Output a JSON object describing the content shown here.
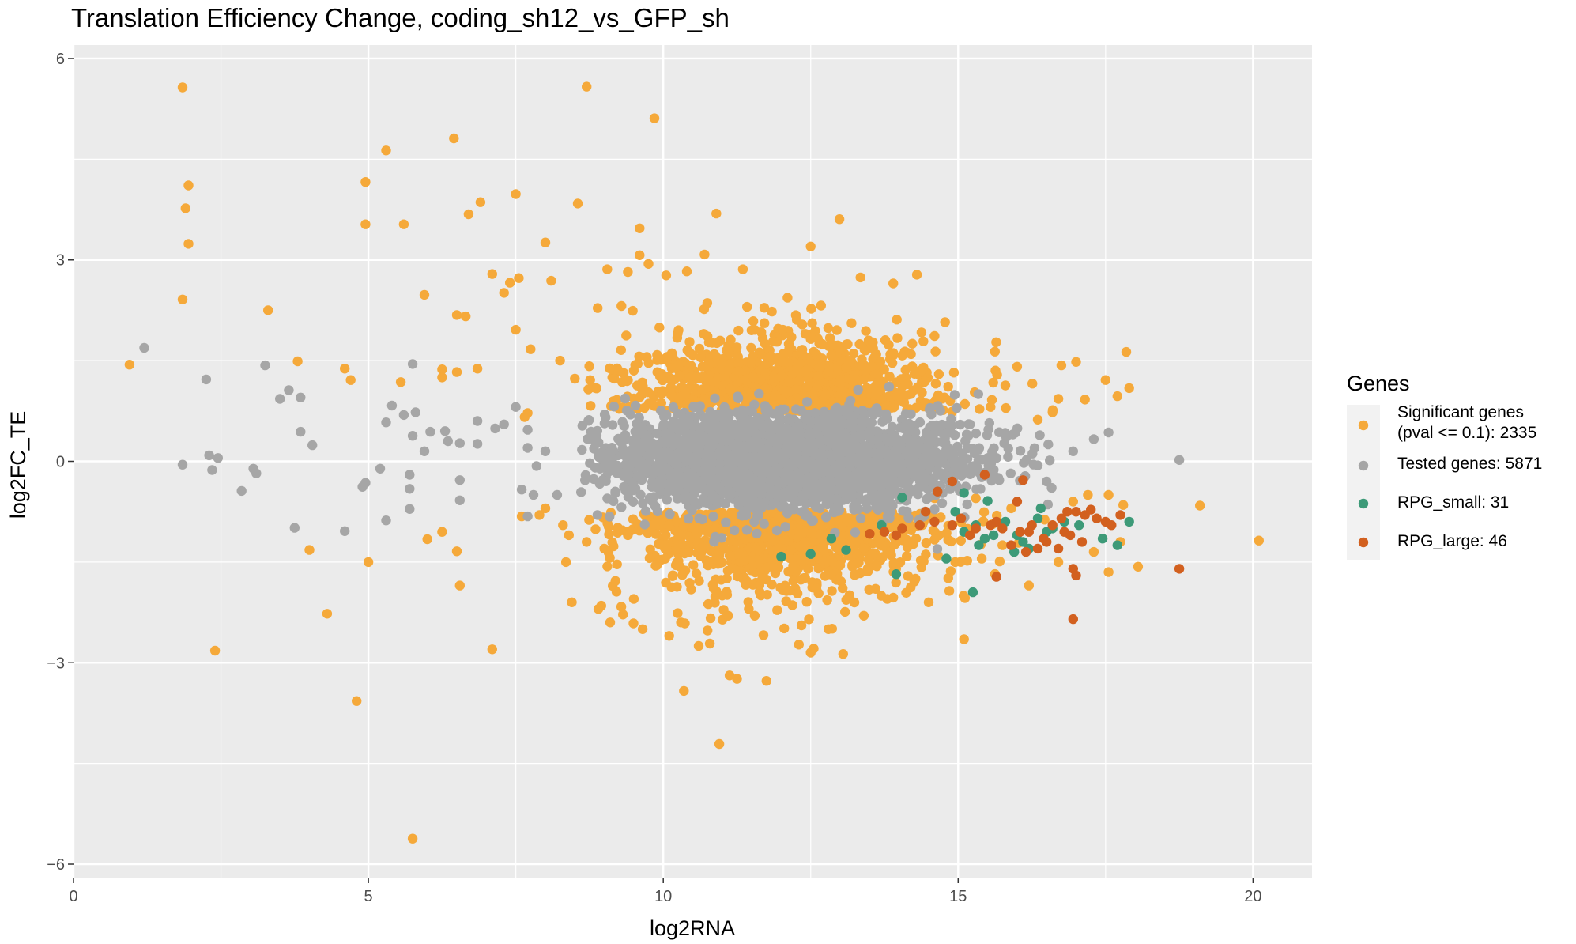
{
  "chart_data": {
    "type": "scatter",
    "title": "Translation Efficiency Change, coding_sh12_vs_GFP_sh",
    "xlabel": "log2RNA",
    "ylabel": "log2FC_TE",
    "xlim": [
      0,
      21
    ],
    "ylim": [
      -6.2,
      6.2
    ],
    "x_ticks": [
      0,
      5,
      10,
      15,
      20
    ],
    "y_ticks": [
      -6,
      -3,
      0,
      3,
      6
    ],
    "y_tick_labels": [
      "−6",
      "−3",
      "0",
      "3",
      "6"
    ],
    "grid": true,
    "panel_background": "#ebebeb",
    "legend": {
      "title": "Genes",
      "position": "right",
      "entries": [
        {
          "key": "significant",
          "label_lines": [
            "Significant genes",
            "(pval <= 0.1): 2335"
          ],
          "color": "#f5a93a"
        },
        {
          "key": "tested",
          "label_lines": [
            "Tested genes: 5871"
          ],
          "color": "#a6a6a6"
        },
        {
          "key": "rpg_small",
          "label_lines": [
            "RPG_small: 31"
          ],
          "color": "#3d9a78"
        },
        {
          "key": "rpg_large",
          "label_lines": [
            "RPG_large: 46"
          ],
          "color": "#d2601f"
        }
      ]
    },
    "series": [
      {
        "key": "significant",
        "color": "#f5a93a",
        "points": [
          [
            1.85,
            5.57
          ],
          [
            8.7,
            5.58
          ],
          [
            9.85,
            5.11
          ],
          [
            6.45,
            4.81
          ],
          [
            5.3,
            4.63
          ],
          [
            1.95,
            4.11
          ],
          [
            4.95,
            4.16
          ],
          [
            1.9,
            3.77
          ],
          [
            7.5,
            3.98
          ],
          [
            8.55,
            3.84
          ],
          [
            6.9,
            3.86
          ],
          [
            4.95,
            3.53
          ],
          [
            5.6,
            3.53
          ],
          [
            6.7,
            3.68
          ],
          [
            1.95,
            3.24
          ],
          [
            8.0,
            3.26
          ],
          [
            10.9,
            3.69
          ],
          [
            9.6,
            3.47
          ],
          [
            3.3,
            2.25
          ],
          [
            1.85,
            2.41
          ],
          [
            6.5,
            2.18
          ],
          [
            6.65,
            2.16
          ],
          [
            5.95,
            2.48
          ],
          [
            7.1,
            2.79
          ],
          [
            7.55,
            2.73
          ],
          [
            7.4,
            2.66
          ],
          [
            7.3,
            2.51
          ],
          [
            8.1,
            2.69
          ],
          [
            12.5,
            3.2
          ],
          [
            13.9,
            2.65
          ],
          [
            14.3,
            2.78
          ],
          [
            0.95,
            1.44
          ],
          [
            3.8,
            1.49
          ],
          [
            4.6,
            1.38
          ],
          [
            4.7,
            1.21
          ],
          [
            5.55,
            1.18
          ],
          [
            6.25,
            1.37
          ],
          [
            6.5,
            1.33
          ],
          [
            6.25,
            1.25
          ],
          [
            6.85,
            1.38
          ],
          [
            7.5,
            1.96
          ],
          [
            7.75,
            1.67
          ],
          [
            8.25,
            1.5
          ],
          [
            8.5,
            1.23
          ],
          [
            9.05,
            2.86
          ],
          [
            9.4,
            2.82
          ],
          [
            9.6,
            3.07
          ],
          [
            9.75,
            2.94
          ],
          [
            10.05,
            2.77
          ],
          [
            10.4,
            2.83
          ],
          [
            10.7,
            3.08
          ],
          [
            11.35,
            2.86
          ],
          [
            17.85,
            1.63
          ],
          [
            17.5,
            1.21
          ],
          [
            17.9,
            1.09
          ],
          [
            17.7,
            0.97
          ],
          [
            17.0,
            1.48
          ],
          [
            16.75,
            1.43
          ],
          [
            16.7,
            0.93
          ],
          [
            17.15,
            0.92
          ],
          [
            16.6,
            0.73
          ],
          [
            16.35,
            0.62
          ],
          [
            15.8,
            1.13
          ],
          [
            15.55,
            0.81
          ],
          [
            14.9,
            0.74
          ],
          [
            16.0,
            1.41
          ],
          [
            7.6,
            -0.82
          ],
          [
            7.65,
            0.66
          ],
          [
            7.7,
            0.72
          ],
          [
            10.1,
            -0.95
          ],
          [
            4.0,
            -1.32
          ],
          [
            5.0,
            -1.5
          ],
          [
            6.0,
            -1.16
          ],
          [
            6.25,
            -1.05
          ],
          [
            6.5,
            -1.34
          ],
          [
            6.55,
            -1.85
          ],
          [
            4.3,
            -2.27
          ],
          [
            2.4,
            -2.82
          ],
          [
            7.1,
            -2.8
          ],
          [
            4.8,
            -3.57
          ],
          [
            5.75,
            -5.62
          ],
          [
            10.35,
            -3.42
          ],
          [
            10.95,
            -4.21
          ],
          [
            11.25,
            -3.24
          ],
          [
            11.75,
            -3.27
          ],
          [
            12.5,
            -2.85
          ],
          [
            12.55,
            -2.79
          ],
          [
            13.05,
            -2.87
          ],
          [
            12.3,
            -2.73
          ],
          [
            15.1,
            -2.65
          ],
          [
            20.1,
            -1.18
          ],
          [
            19.1,
            -0.66
          ],
          [
            18.05,
            -1.57
          ],
          [
            17.55,
            -1.65
          ],
          [
            14.5,
            -2.1
          ],
          [
            14.85,
            -1.93
          ],
          [
            13.9,
            -2.03
          ],
          [
            13.6,
            -1.9
          ],
          [
            13.8,
            -2.05
          ],
          [
            13.0,
            -1.55
          ],
          [
            11.55,
            -2.3
          ],
          [
            11.7,
            -2.59
          ],
          [
            12.05,
            -2.49
          ],
          [
            10.75,
            -2.52
          ],
          [
            11.0,
            -2.0
          ],
          [
            10.3,
            -2.4
          ],
          [
            10.1,
            -2.6
          ],
          [
            9.65,
            -2.5
          ],
          [
            9.1,
            -2.4
          ],
          [
            8.9,
            -2.2
          ],
          [
            8.45,
            -2.1
          ],
          [
            8.95,
            -2.15
          ],
          [
            9.5,
            -2.05
          ],
          [
            10.6,
            -2.75
          ],
          [
            11.1,
            -2.3
          ],
          [
            11.45,
            -2.2
          ],
          [
            12.8,
            -2.5
          ],
          [
            13.4,
            -2.3
          ],
          [
            14.95,
            -1.5
          ],
          [
            15.4,
            -1.45
          ],
          [
            16.7,
            -1.5
          ],
          [
            17.3,
            -1.35
          ],
          [
            17.75,
            -1.2
          ],
          [
            16.2,
            -1.85
          ],
          [
            15.75,
            -1.25
          ],
          [
            17.8,
            -0.65
          ],
          [
            17.55,
            -0.5
          ],
          [
            17.2,
            -0.5
          ],
          [
            16.95,
            -0.6
          ],
          [
            15.9,
            -0.7
          ],
          [
            15.3,
            -0.55
          ],
          [
            14.6,
            -0.55
          ],
          [
            8.3,
            -0.95
          ],
          [
            8.4,
            -1.1
          ],
          [
            7.9,
            -0.8
          ],
          [
            8.0,
            -0.7
          ],
          [
            8.7,
            -1.2
          ],
          [
            8.35,
            -1.5
          ],
          [
            9.0,
            -1.3
          ],
          [
            9.4,
            -1.1
          ]
        ]
      },
      {
        "key": "tested",
        "color": "#a6a6a6",
        "points": [
          [
            1.2,
            1.69
          ],
          [
            2.25,
            1.22
          ],
          [
            3.25,
            1.43
          ],
          [
            3.65,
            1.06
          ],
          [
            3.85,
            0.95
          ],
          [
            3.5,
            0.93
          ],
          [
            3.85,
            0.44
          ],
          [
            4.05,
            0.24
          ],
          [
            1.85,
            -0.05
          ],
          [
            2.3,
            0.09
          ],
          [
            2.35,
            -0.13
          ],
          [
            2.45,
            0.05
          ],
          [
            3.05,
            -0.11
          ],
          [
            3.1,
            -0.18
          ],
          [
            2.85,
            -0.44
          ],
          [
            3.75,
            -0.99
          ],
          [
            4.6,
            -1.04
          ],
          [
            5.3,
            -0.88
          ],
          [
            5.7,
            -0.41
          ],
          [
            5.7,
            -0.2
          ],
          [
            5.7,
            -0.71
          ],
          [
            4.95,
            -0.32
          ],
          [
            4.9,
            -0.38
          ],
          [
            5.2,
            -0.11
          ],
          [
            5.3,
            0.58
          ],
          [
            5.4,
            0.83
          ],
          [
            5.6,
            0.69
          ],
          [
            5.75,
            1.45
          ],
          [
            5.8,
            0.73
          ],
          [
            5.75,
            0.38
          ],
          [
            6.05,
            0.44
          ],
          [
            5.95,
            0.15
          ],
          [
            6.3,
            0.45
          ],
          [
            6.35,
            0.3
          ],
          [
            6.55,
            0.27
          ],
          [
            6.85,
            0.26
          ],
          [
            6.85,
            0.6
          ],
          [
            6.55,
            -0.28
          ],
          [
            6.55,
            -0.58
          ],
          [
            7.15,
            0.49
          ],
          [
            7.3,
            0.55
          ],
          [
            7.5,
            0.81
          ],
          [
            7.7,
            0.47
          ],
          [
            7.7,
            0.2
          ],
          [
            7.6,
            -0.42
          ],
          [
            7.8,
            -0.5
          ],
          [
            7.7,
            -0.82
          ],
          [
            7.85,
            -0.07
          ],
          [
            8.0,
            0.15
          ],
          [
            8.2,
            -0.5
          ],
          [
            18.75,
            0.02
          ],
          [
            17.55,
            0.43
          ],
          [
            17.3,
            0.33
          ],
          [
            16.95,
            0.15
          ],
          [
            16.5,
            -0.3
          ],
          [
            16.35,
            -0.06
          ],
          [
            15.85,
            0.19
          ],
          [
            15.6,
            -0.2
          ],
          [
            15.2,
            0.55
          ],
          [
            15.5,
            0.05
          ]
        ]
      },
      {
        "key": "rpg_small",
        "color": "#3d9a78",
        "points": [
          [
            14.05,
            -0.54
          ],
          [
            15.1,
            -0.47
          ],
          [
            15.5,
            -0.59
          ],
          [
            15.6,
            -1.1
          ],
          [
            15.35,
            -1.25
          ],
          [
            15.8,
            -0.9
          ],
          [
            16.0,
            -1.1
          ],
          [
            16.1,
            -1.2
          ],
          [
            16.4,
            -0.7
          ],
          [
            16.35,
            -0.85
          ],
          [
            16.5,
            -1.05
          ],
          [
            16.2,
            -1.3
          ],
          [
            15.95,
            -1.35
          ],
          [
            15.25,
            -1.95
          ],
          [
            14.8,
            -1.45
          ],
          [
            13.95,
            -1.68
          ],
          [
            13.1,
            -1.32
          ],
          [
            12.85,
            -1.15
          ],
          [
            12.5,
            -1.38
          ],
          [
            12.0,
            -1.42
          ],
          [
            15.1,
            -1.05
          ],
          [
            15.3,
            -0.95
          ],
          [
            15.45,
            -1.15
          ],
          [
            16.8,
            -0.9
          ],
          [
            17.05,
            -0.95
          ],
          [
            17.45,
            -1.15
          ],
          [
            17.7,
            -1.25
          ],
          [
            17.9,
            -0.9
          ],
          [
            16.6,
            -1.0
          ],
          [
            14.95,
            -0.75
          ],
          [
            13.7,
            -0.95
          ]
        ]
      },
      {
        "key": "rpg_large",
        "color": "#d2601f",
        "points": [
          [
            14.65,
            -0.45
          ],
          [
            14.9,
            -0.3
          ],
          [
            15.45,
            -0.2
          ],
          [
            16.1,
            -0.28
          ],
          [
            16.0,
            -0.6
          ],
          [
            15.65,
            -0.9
          ],
          [
            15.2,
            -1.1
          ],
          [
            15.05,
            -0.85
          ],
          [
            14.9,
            -0.95
          ],
          [
            14.45,
            -0.75
          ],
          [
            14.35,
            -0.95
          ],
          [
            14.05,
            -1.0
          ],
          [
            13.75,
            -1.05
          ],
          [
            13.5,
            -1.08
          ],
          [
            13.95,
            -1.1
          ],
          [
            15.9,
            -1.25
          ],
          [
            16.05,
            -1.05
          ],
          [
            16.15,
            -1.35
          ],
          [
            16.25,
            -0.95
          ],
          [
            16.35,
            -1.3
          ],
          [
            16.5,
            -1.2
          ],
          [
            16.6,
            -0.95
          ],
          [
            16.75,
            -0.85
          ],
          [
            16.85,
            -0.75
          ],
          [
            16.9,
            -1.1
          ],
          [
            17.0,
            -0.75
          ],
          [
            17.15,
            -0.8
          ],
          [
            17.25,
            -0.72
          ],
          [
            17.35,
            -0.85
          ],
          [
            17.5,
            -0.9
          ],
          [
            17.75,
            -0.8
          ],
          [
            16.95,
            -1.6
          ],
          [
            17.0,
            -1.7
          ],
          [
            16.95,
            -2.35
          ],
          [
            15.65,
            -1.72
          ],
          [
            18.75,
            -1.6
          ],
          [
            16.7,
            -1.3
          ],
          [
            16.45,
            -1.15
          ],
          [
            15.75,
            -1.0
          ],
          [
            15.55,
            -0.95
          ],
          [
            17.1,
            -1.2
          ],
          [
            16.2,
            -1.05
          ],
          [
            15.3,
            -1.0
          ],
          [
            14.6,
            -0.9
          ],
          [
            17.6,
            -0.95
          ],
          [
            16.8,
            -1.05
          ]
        ]
      }
    ]
  }
}
